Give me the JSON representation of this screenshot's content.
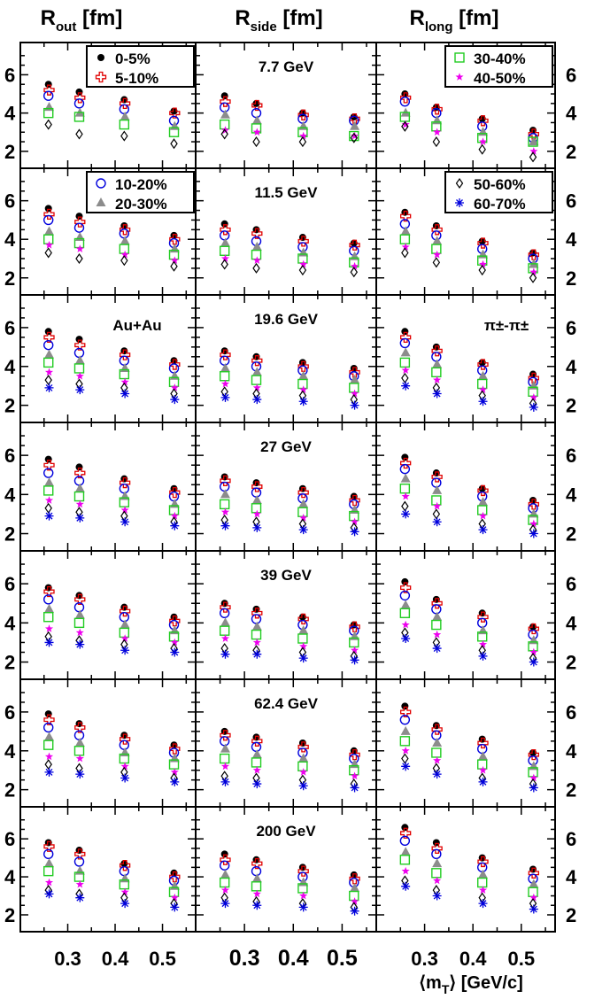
{
  "figure": {
    "column_titles": [
      {
        "main": "R",
        "sub": "out",
        "unit": " [fm]"
      },
      {
        "main": "R",
        "sub": "side",
        "unit": " [fm]"
      },
      {
        "main": "R",
        "sub": "long",
        "unit": " [fm]"
      }
    ],
    "y_ticks": [
      "2",
      "4",
      "6"
    ],
    "x_ticks": [
      "0.3",
      "0.4",
      "0.5"
    ],
    "x_axis_label": {
      "pre": "⟨m",
      "sub": "T",
      "post": "⟩ [GeV/c]"
    },
    "system_label": "Au+Au",
    "pair_label": "π±-π±",
    "energies": [
      "7.7 GeV",
      "11.5 GeV",
      "19.6 GeV",
      "27 GeV",
      "39 GeV",
      "62.4 GeV",
      "200 GeV"
    ]
  },
  "chart_data": {
    "type": "scatter",
    "layout": "grid",
    "rows": 7,
    "columns": [
      "R_out",
      "R_side",
      "R_long"
    ],
    "ylim": [
      1.3,
      7.5
    ],
    "xlim": [
      0.2,
      0.57
    ],
    "grid": false,
    "x": [
      0.26,
      0.325,
      0.42,
      0.525
    ],
    "centralities": [
      {
        "name": "0-5%",
        "marker": "filled-circle",
        "color": "#000000"
      },
      {
        "name": "5-10%",
        "marker": "open-cross",
        "color": "#e00000"
      },
      {
        "name": "10-20%",
        "marker": "open-circle",
        "color": "#0000dd"
      },
      {
        "name": "20-30%",
        "marker": "filled-triangle",
        "color": "#8c8c8c"
      },
      {
        "name": "30-40%",
        "marker": "open-square",
        "color": "#22cc22"
      },
      {
        "name": "40-50%",
        "marker": "filled-star",
        "color": "#ee00ee"
      },
      {
        "name": "50-60%",
        "marker": "open-diamond",
        "color": "#000000"
      },
      {
        "name": "60-70%",
        "marker": "asterisk",
        "color": "#0000dd"
      }
    ],
    "legend_panels": [
      {
        "row": 0,
        "col": 0,
        "entries": [
          0,
          1
        ],
        "position": "top-right"
      },
      {
        "row": 0,
        "col": 2,
        "entries": [
          4,
          5
        ],
        "position": "top-right"
      },
      {
        "row": 1,
        "col": 0,
        "entries": [
          2,
          3
        ],
        "position": "top-right"
      },
      {
        "row": 1,
        "col": 2,
        "entries": [
          6,
          7
        ],
        "position": "top-right"
      }
    ],
    "panels": [
      {
        "energy": "7.7 GeV",
        "R_out": [
          [
            5.5,
            5.2,
            4.9,
            4.3,
            4.0,
            null,
            3.4,
            null
          ],
          [
            5.1,
            4.8,
            4.5,
            4.0,
            3.8,
            null,
            2.9,
            null
          ],
          [
            4.7,
            4.5,
            4.2,
            3.8,
            3.4,
            null,
            2.8,
            null
          ],
          [
            4.1,
            4.0,
            3.6,
            3.3,
            3.0,
            null,
            2.4,
            null
          ]
        ],
        "R_side": [
          [
            4.9,
            4.6,
            4.3,
            3.9,
            3.4,
            3.1,
            2.9,
            null
          ],
          [
            4.5,
            4.4,
            4.0,
            3.6,
            3.2,
            3.0,
            2.5,
            null
          ],
          [
            4.0,
            3.9,
            3.7,
            3.3,
            3.0,
            2.8,
            2.5,
            null
          ],
          [
            3.8,
            3.7,
            3.6,
            3.3,
            2.8,
            2.8,
            2.7,
            null
          ]
        ],
        "R_long": [
          [
            5.0,
            4.8,
            4.6,
            4.0,
            3.8,
            3.4,
            3.3,
            null
          ],
          [
            4.3,
            4.2,
            4.0,
            3.6,
            3.3,
            3.0,
            2.5,
            null
          ],
          [
            3.7,
            3.6,
            3.3,
            3.0,
            2.7,
            2.5,
            2.1,
            null
          ],
          [
            3.1,
            2.9,
            2.7,
            2.5,
            2.5,
            2.0,
            1.7,
            null
          ]
        ]
      },
      {
        "energy": "11.5 GeV",
        "R_out": [
          [
            5.6,
            5.3,
            5.0,
            4.4,
            4.0,
            3.7,
            3.3,
            null
          ],
          [
            5.2,
            4.9,
            4.6,
            4.1,
            3.8,
            3.5,
            3.0,
            null
          ],
          [
            4.7,
            4.5,
            4.3,
            3.9,
            3.5,
            3.2,
            2.9,
            null
          ],
          [
            4.2,
            4.0,
            3.8,
            3.5,
            3.2,
            2.9,
            2.6,
            null
          ]
        ],
        "R_side": [
          [
            4.8,
            4.5,
            4.2,
            3.8,
            3.4,
            3.0,
            2.7,
            null
          ],
          [
            4.5,
            4.3,
            3.9,
            3.6,
            3.2,
            2.9,
            2.5,
            null
          ],
          [
            4.1,
            3.9,
            3.6,
            3.3,
            3.0,
            2.7,
            2.4,
            null
          ],
          [
            3.8,
            3.7,
            3.4,
            3.1,
            2.8,
            2.6,
            2.3,
            null
          ]
        ],
        "R_long": [
          [
            5.4,
            5.2,
            4.8,
            4.4,
            4.0,
            3.6,
            3.3,
            null
          ],
          [
            4.7,
            4.5,
            4.2,
            3.9,
            3.5,
            3.2,
            2.8,
            null
          ],
          [
            3.9,
            3.8,
            3.5,
            3.2,
            2.9,
            2.7,
            2.4,
            null
          ],
          [
            3.3,
            3.2,
            3.0,
            2.7,
            2.5,
            2.3,
            2.0,
            null
          ]
        ]
      },
      {
        "energy": "19.6 GeV",
        "R_out": [
          [
            5.8,
            5.5,
            5.1,
            4.6,
            4.2,
            3.7,
            3.3,
            2.9
          ],
          [
            5.4,
            5.1,
            4.7,
            4.3,
            3.9,
            3.5,
            3.1,
            2.8
          ],
          [
            4.8,
            4.6,
            4.3,
            3.9,
            3.6,
            3.2,
            2.9,
            2.6
          ],
          [
            4.3,
            4.1,
            3.9,
            3.5,
            3.2,
            2.9,
            2.6,
            2.3
          ]
        ],
        "R_side": [
          [
            4.8,
            4.6,
            4.3,
            3.9,
            3.5,
            3.1,
            2.7,
            2.4
          ],
          [
            4.5,
            4.3,
            4.0,
            3.7,
            3.3,
            2.9,
            2.6,
            2.3
          ],
          [
            4.2,
            4.0,
            3.8,
            3.5,
            3.1,
            2.8,
            2.5,
            2.2
          ],
          [
            3.9,
            3.7,
            3.5,
            3.3,
            2.9,
            2.6,
            2.3,
            2.0
          ]
        ],
        "R_long": [
          [
            5.8,
            5.5,
            5.2,
            4.7,
            4.2,
            3.8,
            3.4,
            3.0
          ],
          [
            5.0,
            4.8,
            4.5,
            4.1,
            3.7,
            3.3,
            2.9,
            2.6
          ],
          [
            4.2,
            4.1,
            3.8,
            3.5,
            3.1,
            2.8,
            2.5,
            2.2
          ],
          [
            3.6,
            3.4,
            3.2,
            3.0,
            2.7,
            2.4,
            2.1,
            1.9
          ]
        ]
      },
      {
        "energy": "27 GeV",
        "R_out": [
          [
            5.8,
            5.5,
            5.1,
            4.6,
            4.2,
            3.7,
            3.3,
            2.9
          ],
          [
            5.4,
            5.1,
            4.7,
            4.3,
            3.9,
            3.5,
            3.1,
            2.8
          ],
          [
            4.8,
            4.6,
            4.3,
            3.9,
            3.6,
            3.2,
            2.9,
            2.6
          ],
          [
            4.3,
            4.1,
            3.9,
            3.5,
            3.2,
            2.9,
            2.6,
            2.4
          ]
        ],
        "R_side": [
          [
            4.9,
            4.7,
            4.4,
            4.0,
            3.5,
            3.1,
            2.7,
            2.4
          ],
          [
            4.6,
            4.4,
            4.1,
            3.7,
            3.3,
            3.0,
            2.6,
            2.3
          ],
          [
            4.3,
            4.1,
            3.8,
            3.5,
            3.1,
            2.8,
            2.5,
            2.2
          ],
          [
            3.9,
            3.7,
            3.5,
            3.2,
            2.9,
            2.6,
            2.3,
            2.1
          ]
        ],
        "R_long": [
          [
            5.9,
            5.6,
            5.3,
            4.8,
            4.3,
            3.9,
            3.4,
            3.0
          ],
          [
            5.1,
            4.9,
            4.6,
            4.2,
            3.7,
            3.4,
            3.0,
            2.6
          ],
          [
            4.3,
            4.2,
            3.9,
            3.6,
            3.2,
            2.9,
            2.5,
            2.2
          ],
          [
            3.7,
            3.5,
            3.3,
            3.0,
            2.7,
            2.5,
            2.2,
            2.0
          ]
        ]
      },
      {
        "energy": "39 GeV",
        "R_out": [
          [
            5.8,
            5.6,
            5.2,
            4.7,
            4.3,
            3.7,
            3.3,
            3.0
          ],
          [
            5.4,
            5.2,
            4.8,
            4.4,
            4.0,
            3.5,
            3.1,
            2.9
          ],
          [
            4.8,
            4.6,
            4.3,
            3.9,
            3.5,
            3.2,
            2.9,
            2.6
          ],
          [
            4.3,
            4.1,
            3.9,
            3.6,
            3.3,
            3.0,
            2.7,
            2.5
          ]
        ],
        "R_side": [
          [
            5.0,
            4.8,
            4.5,
            4.0,
            3.6,
            3.2,
            2.7,
            2.4
          ],
          [
            4.7,
            4.5,
            4.2,
            3.8,
            3.4,
            3.0,
            2.6,
            2.4
          ],
          [
            4.3,
            4.2,
            3.9,
            3.6,
            3.2,
            2.8,
            2.5,
            2.2
          ],
          [
            3.9,
            3.8,
            3.6,
            3.3,
            3.0,
            2.6,
            2.3,
            2.1
          ]
        ],
        "R_long": [
          [
            6.1,
            5.8,
            5.4,
            4.9,
            4.5,
            3.9,
            3.5,
            3.2
          ],
          [
            5.2,
            5.0,
            4.7,
            4.3,
            3.9,
            3.4,
            3.0,
            2.7
          ],
          [
            4.5,
            4.3,
            4.0,
            3.6,
            3.3,
            2.9,
            2.6,
            2.3
          ],
          [
            3.8,
            3.7,
            3.4,
            3.1,
            2.8,
            2.5,
            2.2,
            2.0
          ]
        ]
      },
      {
        "energy": "62.4 GeV",
        "R_out": [
          [
            5.9,
            5.6,
            5.2,
            4.7,
            4.3,
            3.7,
            3.3,
            2.9
          ],
          [
            5.4,
            5.2,
            4.8,
            4.4,
            4.0,
            3.6,
            3.1,
            2.8
          ],
          [
            4.8,
            4.6,
            4.3,
            3.9,
            3.6,
            3.2,
            2.9,
            2.6
          ],
          [
            4.3,
            4.1,
            3.9,
            3.6,
            3.3,
            2.9,
            2.6,
            2.4
          ]
        ],
        "R_side": [
          [
            5.0,
            4.8,
            4.5,
            4.1,
            3.6,
            3.2,
            2.7,
            2.4
          ],
          [
            4.7,
            4.5,
            4.2,
            3.8,
            3.4,
            3.0,
            2.6,
            2.3
          ],
          [
            4.4,
            4.2,
            3.9,
            3.6,
            3.2,
            2.9,
            2.5,
            2.2
          ],
          [
            4.0,
            3.8,
            3.6,
            3.3,
            3.0,
            2.7,
            2.3,
            2.1
          ]
        ],
        "R_long": [
          [
            6.3,
            6.0,
            5.6,
            5.0,
            4.5,
            4.0,
            3.6,
            3.2
          ],
          [
            5.3,
            5.1,
            4.8,
            4.4,
            3.9,
            3.5,
            3.1,
            2.8
          ],
          [
            4.6,
            4.4,
            4.1,
            3.7,
            3.3,
            3.0,
            2.6,
            2.4
          ],
          [
            3.9,
            3.8,
            3.5,
            3.2,
            2.9,
            2.6,
            2.3,
            2.1
          ]
        ]
      },
      {
        "energy": "200 GeV",
        "R_out": [
          [
            5.8,
            5.6,
            5.2,
            4.7,
            4.3,
            3.7,
            3.3,
            3.1
          ],
          [
            5.4,
            5.2,
            4.8,
            4.3,
            4.0,
            3.6,
            3.1,
            2.9
          ],
          [
            4.7,
            4.6,
            4.3,
            3.9,
            3.6,
            3.2,
            2.9,
            2.6
          ],
          [
            4.2,
            4.0,
            3.8,
            3.5,
            3.2,
            2.9,
            2.6,
            2.4
          ]
        ],
        "R_side": [
          [
            5.2,
            4.9,
            4.6,
            4.1,
            3.7,
            3.3,
            2.9,
            2.6
          ],
          [
            4.9,
            4.7,
            4.3,
            3.9,
            3.5,
            3.1,
            2.7,
            2.5
          ],
          [
            4.5,
            4.3,
            4.0,
            3.7,
            3.4,
            3.0,
            2.6,
            2.4
          ],
          [
            4.1,
            3.9,
            3.7,
            3.4,
            3.0,
            2.7,
            2.4,
            2.2
          ]
        ],
        "R_long": [
          [
            6.6,
            6.3,
            5.9,
            5.3,
            4.9,
            4.3,
            3.8,
            3.5
          ],
          [
            5.8,
            5.5,
            5.2,
            4.7,
            4.2,
            3.8,
            3.3,
            3.0
          ],
          [
            5.0,
            4.8,
            4.5,
            4.1,
            3.7,
            3.3,
            2.9,
            2.6
          ],
          [
            4.4,
            4.2,
            3.9,
            3.6,
            3.2,
            2.9,
            2.6,
            2.3
          ]
        ]
      }
    ]
  }
}
